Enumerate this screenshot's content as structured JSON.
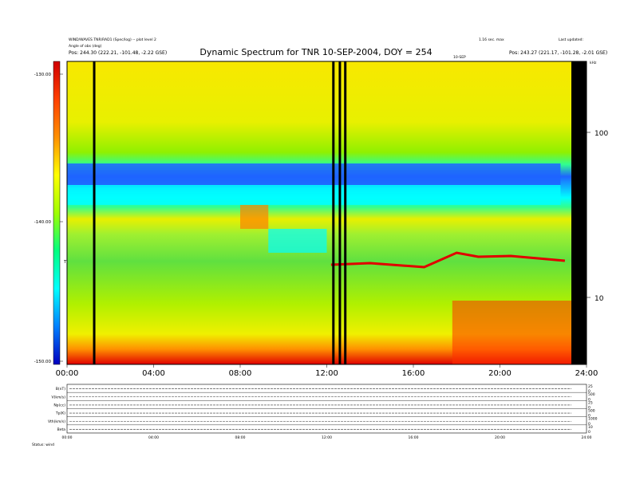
{
  "header": {
    "left_line1": "WIND/WAVES TNR/RAD1 (Spec/log) -- plot level 2",
    "left_line2": "Angle of obs (deg)",
    "left_line3": "Pos: 244.30 (222.21, -101.48, -2.22 GSE)",
    "right_line1": "1.16 sec. max",
    "right_line2": "Last updated:",
    "right_line3": "Pos: 243.27 (221.17, -101.28, -2.01 GSE)",
    "date_label": "10-SEP",
    "khz_label": "kHz"
  },
  "chart_data": {
    "type": "heatmap",
    "title": "Dynamic Spectrum for TNR 10-SEP-2004, DOY = 254",
    "x_ticks": [
      "00:00",
      "04:00",
      "08:00",
      "12:00",
      "16:00",
      "20:00",
      "24:00"
    ],
    "x_range_hours": [
      0,
      24
    ],
    "y_right_ticks": [
      "100",
      "10"
    ],
    "y_right_tick_values_khz": [
      100,
      10
    ],
    "colorbar_ticks": [
      "-130.00",
      "-140.00",
      "-150.00"
    ],
    "colorbar_label": "TNR",
    "colorbar_range_db": [
      -150,
      -130
    ],
    "colorscale": [
      "#d00000",
      "#ff4000",
      "#ff9000",
      "#ffff00",
      "#a0ff00",
      "#00ff80",
      "#00ffff",
      "#0080ff",
      "#0000c0"
    ],
    "data_gaps_hours": [
      1.2,
      12.25,
      12.55,
      12.8,
      23.3
    ],
    "bands": [
      {
        "name": "high-frequency noise",
        "color": "#f6f000"
      },
      {
        "name": "blue band",
        "color": "#1e64ff"
      },
      {
        "name": "cyan band",
        "color": "#00ffff"
      },
      {
        "name": "plasma line",
        "color": "#ff3030"
      },
      {
        "name": "low frequency",
        "color": "#70e030"
      }
    ]
  },
  "panels": {
    "rows": [
      {
        "label": "B(nT)",
        "range": [
          "25",
          "0"
        ]
      },
      {
        "label": "V(km/s)",
        "range": [
          "500",
          "0"
        ]
      },
      {
        "label": "Np(cc)",
        "range": [
          "25",
          "0"
        ]
      },
      {
        "label": "Tp(K)",
        "range": [
          "500",
          "0"
        ]
      },
      {
        "label": "Vth(km/s)",
        "range": [
          "1000",
          "0"
        ]
      },
      {
        "label": "Beta",
        "range": [
          "10",
          "0"
        ]
      }
    ],
    "x_ticks": [
      "00:00",
      "04:00",
      "08:00",
      "12:00",
      "16:00",
      "20:00",
      "24:00"
    ],
    "footer_left": "Status: wind"
  }
}
